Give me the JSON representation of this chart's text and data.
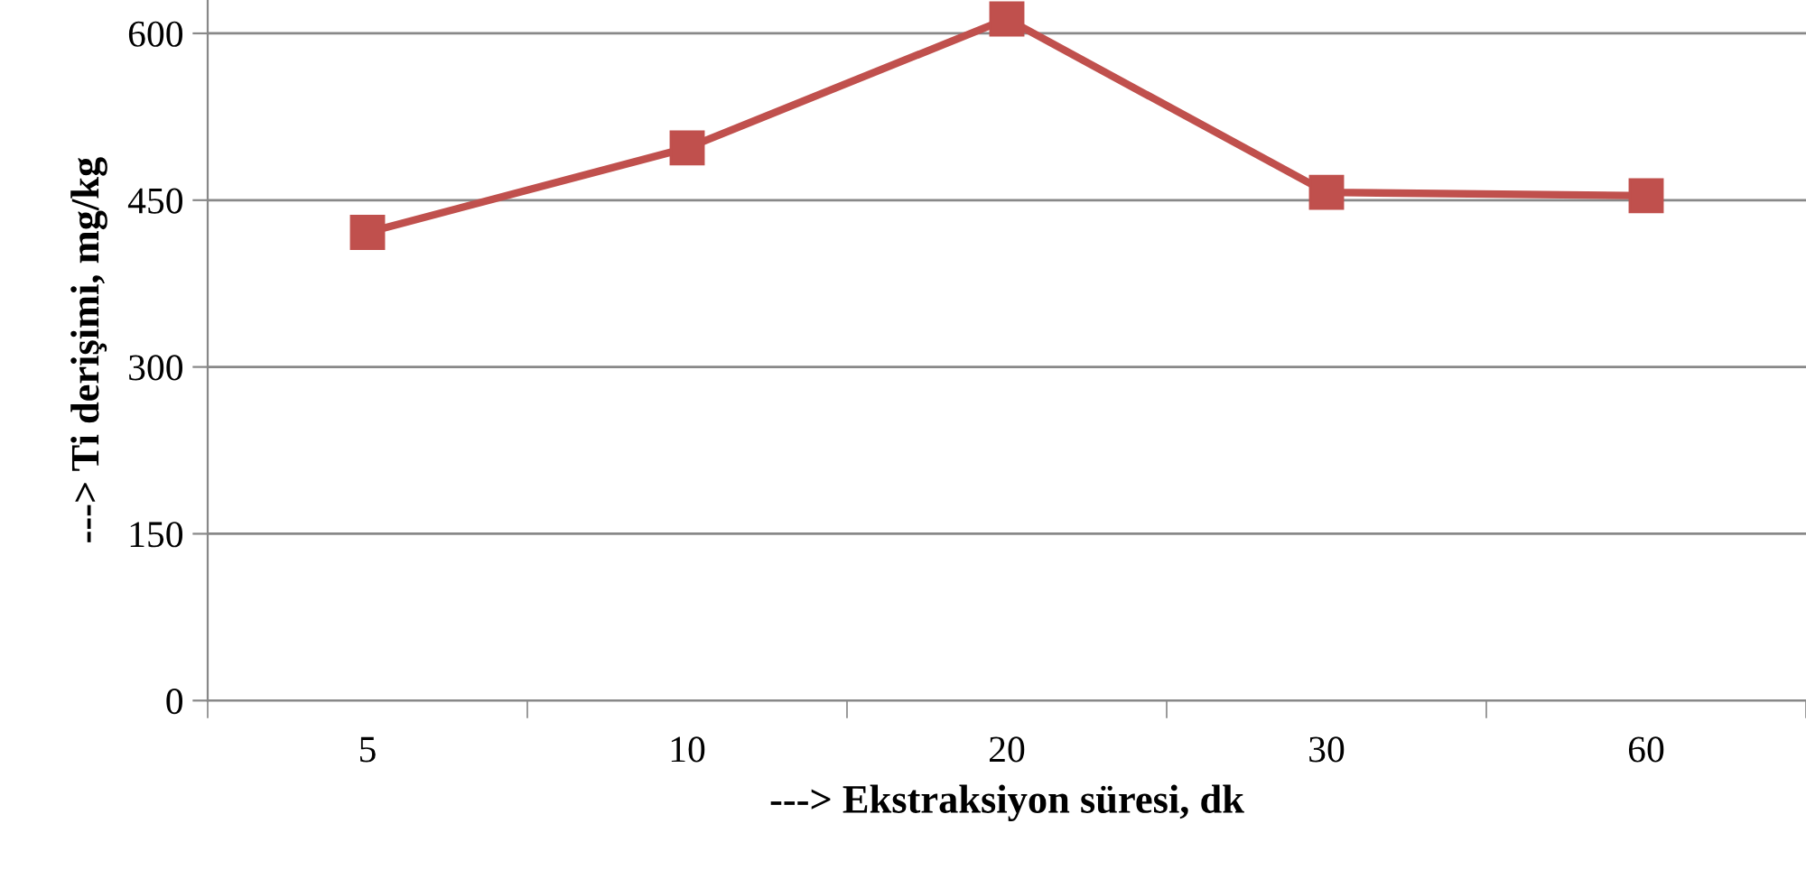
{
  "chart_data": {
    "type": "line",
    "xlabel": "---> Ekstraksiyon süresi, dk",
    "ylabel": "---> Ti derişimi, mg/kg",
    "categories": [
      "5",
      "10",
      "20",
      "30",
      "60"
    ],
    "series": [
      {
        "color": "#c0504d",
        "values": [
          421,
          497,
          613,
          457,
          454
        ]
      }
    ],
    "ylim": [
      0,
      630
    ],
    "yticks": [
      0,
      150,
      300,
      450,
      600
    ],
    "grid": "y",
    "marker": "square",
    "line_style": "solid"
  }
}
